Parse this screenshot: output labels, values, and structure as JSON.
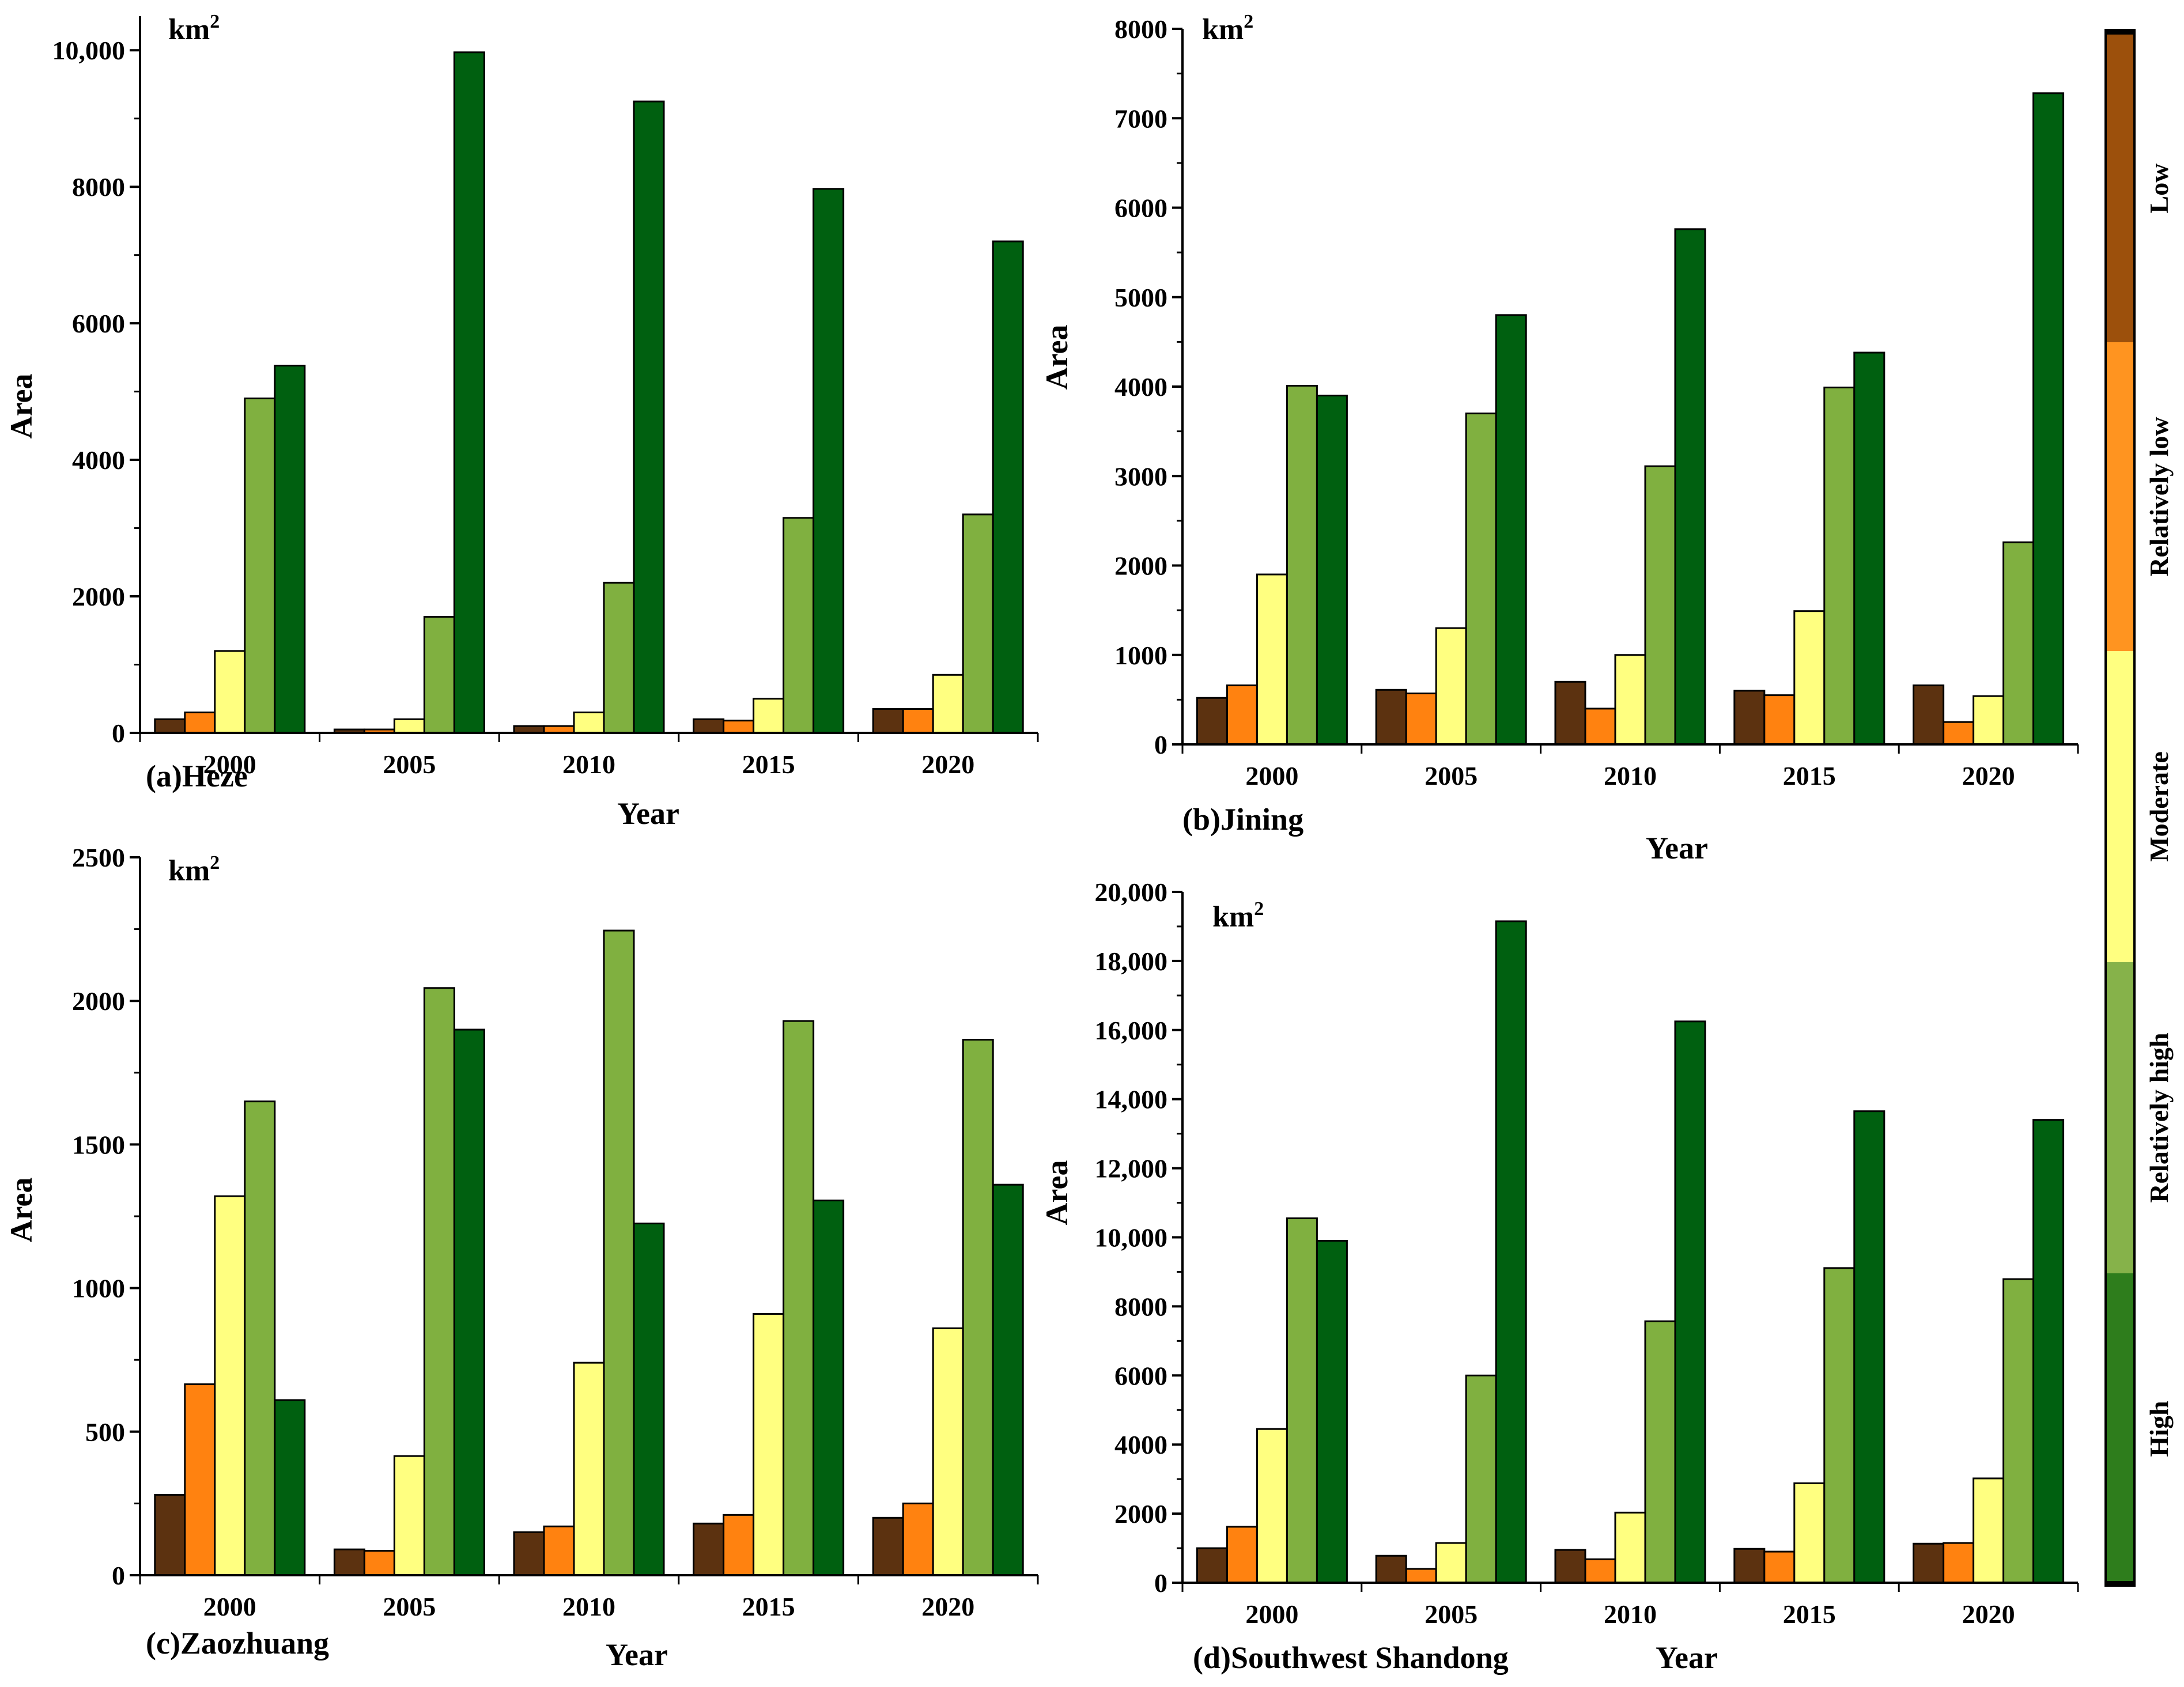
{
  "legend": {
    "classes": [
      {
        "label": "High",
        "color": "#2e7d1c"
      },
      {
        "label": "Relatively high",
        "color": "#86b24a"
      },
      {
        "label": "Moderate",
        "color": "#ffff80"
      },
      {
        "label": "Relatively low",
        "color": "#ff9420"
      },
      {
        "label": "Low",
        "color": "#9c500c"
      }
    ]
  },
  "bar_colors": [
    "#5c3210",
    "#ff8210",
    "#ffff80",
    "#80b040",
    "#006010"
  ],
  "chart_data": [
    {
      "type": "bar",
      "panel_label": "(a)Heze",
      "unit": "km",
      "unit_exp": "2",
      "xlabel": "Year",
      "ylabel": "Area",
      "ylim": [
        0,
        10500
      ],
      "yticks": [
        0,
        2000,
        4000,
        6000,
        8000,
        10000
      ],
      "ytick_labels": [
        "0",
        "2000",
        "4000",
        "6000",
        "8000",
        "10,000"
      ],
      "categories": [
        "2000",
        "2005",
        "2010",
        "2015",
        "2020"
      ],
      "series": [
        {
          "name": "Low",
          "values": [
            200,
            50,
            100,
            200,
            350
          ]
        },
        {
          "name": "Relatively low",
          "values": [
            300,
            50,
            100,
            180,
            350
          ]
        },
        {
          "name": "Moderate",
          "values": [
            1200,
            200,
            300,
            500,
            850
          ]
        },
        {
          "name": "Relatively high",
          "values": [
            4900,
            1700,
            2200,
            3150,
            3200
          ]
        },
        {
          "name": "High",
          "values": [
            5380,
            9970,
            9250,
            7970,
            7200
          ]
        }
      ]
    },
    {
      "type": "bar",
      "panel_label": "(b)Jining",
      "unit": "km",
      "unit_exp": "2",
      "xlabel": "Year",
      "ylabel": "Area",
      "ylim": [
        0,
        8000
      ],
      "yticks": [
        0,
        1000,
        2000,
        3000,
        4000,
        5000,
        6000,
        7000,
        8000
      ],
      "ytick_labels": [
        "0",
        "1000",
        "2000",
        "3000",
        "4000",
        "5000",
        "6000",
        "7000",
        "8000"
      ],
      "categories": [
        "2000",
        "2005",
        "2010",
        "2015",
        "2020"
      ],
      "series": [
        {
          "name": "Low",
          "values": [
            520,
            610,
            700,
            600,
            660
          ]
        },
        {
          "name": "Relatively low",
          "values": [
            660,
            570,
            400,
            550,
            250
          ]
        },
        {
          "name": "Moderate",
          "values": [
            1900,
            1300,
            1000,
            1490,
            540
          ]
        },
        {
          "name": "Relatively high",
          "values": [
            4010,
            3700,
            3110,
            3990,
            2260
          ]
        },
        {
          "name": "High",
          "values": [
            3900,
            4800,
            5760,
            4380,
            7280
          ]
        }
      ]
    },
    {
      "type": "bar",
      "panel_label": "(c)Zaozhuang",
      "unit": "km",
      "unit_exp": "2",
      "xlabel": "Year",
      "ylabel": "Area",
      "ylim": [
        0,
        2500
      ],
      "yticks": [
        0,
        500,
        1000,
        1500,
        2000,
        2500
      ],
      "ytick_labels": [
        "0",
        "500",
        "1000",
        "1500",
        "2000",
        "2500"
      ],
      "categories": [
        "2000",
        "2005",
        "2010",
        "2015",
        "2020"
      ],
      "series": [
        {
          "name": "Low",
          "values": [
            280,
            90,
            150,
            180,
            200
          ]
        },
        {
          "name": "Relatively low",
          "values": [
            665,
            85,
            170,
            210,
            250
          ]
        },
        {
          "name": "Moderate",
          "values": [
            1320,
            415,
            740,
            910,
            860
          ]
        },
        {
          "name": "Relatively high",
          "values": [
            1650,
            2045,
            2245,
            1930,
            1865
          ]
        },
        {
          "name": "High",
          "values": [
            610,
            1900,
            1225,
            1305,
            1360
          ]
        }
      ]
    },
    {
      "type": "bar",
      "panel_label": "(d)Southwest Shandong",
      "unit": "km",
      "unit_exp": "2",
      "xlabel": "Year",
      "ylabel": "Area",
      "ylim": [
        0,
        20000
      ],
      "yticks": [
        0,
        2000,
        4000,
        6000,
        8000,
        10000,
        12000,
        14000,
        16000,
        18000,
        20000
      ],
      "ytick_labels": [
        "0",
        "2000",
        "4000",
        "6000",
        "8000",
        "10,000",
        "12,000",
        "14,000",
        "16,000",
        "18,000",
        "20,000"
      ],
      "categories": [
        "2000",
        "2005",
        "2010",
        "2015",
        "2020"
      ],
      "series": [
        {
          "name": "Low",
          "values": [
            1000,
            780,
            950,
            980,
            1130
          ]
        },
        {
          "name": "Relatively low",
          "values": [
            1620,
            400,
            680,
            900,
            1150
          ]
        },
        {
          "name": "Moderate",
          "values": [
            4450,
            1150,
            2030,
            2880,
            3020
          ]
        },
        {
          "name": "Relatively high",
          "values": [
            10550,
            6000,
            7570,
            9110,
            8790
          ]
        },
        {
          "name": "High",
          "values": [
            9900,
            19150,
            16250,
            13650,
            13400
          ]
        }
      ]
    }
  ]
}
